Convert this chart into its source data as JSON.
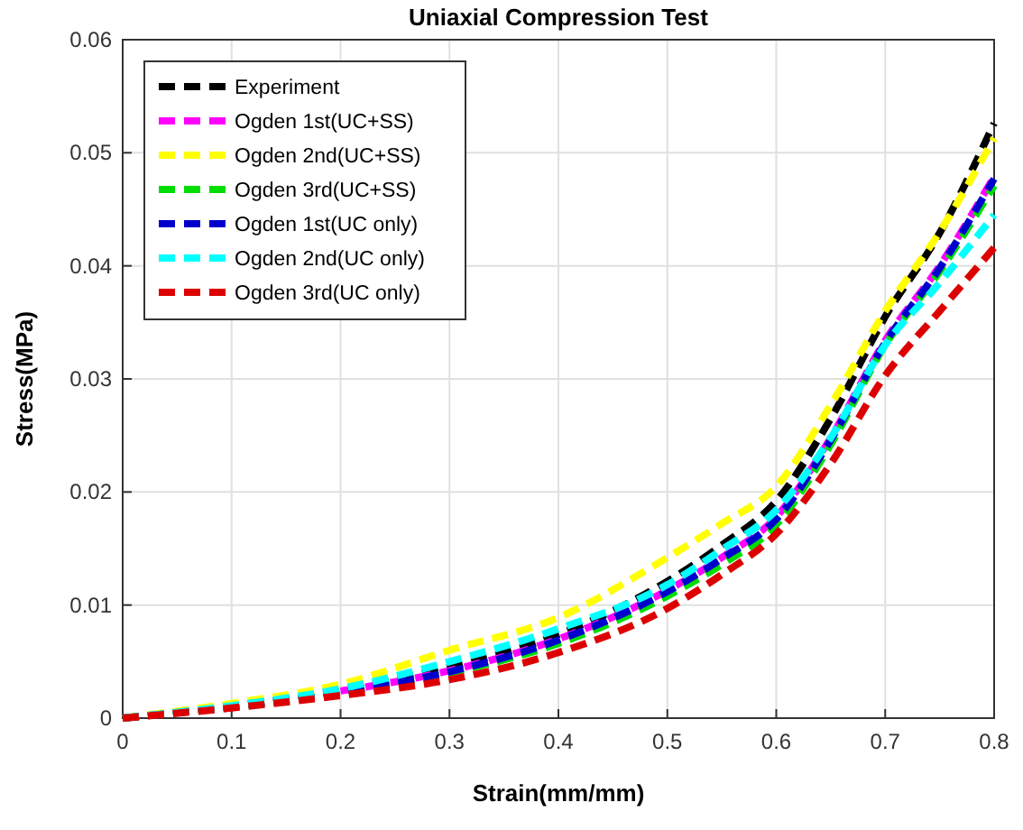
{
  "chart_data": {
    "type": "line",
    "title": "Uniaxial Compression Test",
    "xlabel": "Strain(mm/mm)",
    "ylabel": "Stress(MPa)",
    "x": [
      0,
      0.1,
      0.2,
      0.3,
      0.4,
      0.5,
      0.55,
      0.6,
      0.65,
      0.7,
      0.75,
      0.8
    ],
    "xlim": [
      0,
      0.8
    ],
    "xticks": [
      0,
      0.1,
      0.2,
      0.3,
      0.4,
      0.5,
      0.6,
      0.7,
      0.8
    ],
    "ylim": [
      0,
      0.06
    ],
    "yticks": [
      0,
      0.01,
      0.02,
      0.03,
      0.04,
      0.05,
      0.06
    ],
    "grid": true,
    "legend": "top left",
    "line_style": "dashed",
    "series": [
      {
        "name": "Experiment",
        "color": "#000000",
        "values": [
          0,
          0.0011,
          0.0025,
          0.0045,
          0.0074,
          0.0121,
          0.0153,
          0.0192,
          0.0265,
          0.0355,
          0.0429,
          0.0526
        ]
      },
      {
        "name": "Ogden 1st(UC+SS)",
        "color": "#ff00ff",
        "values": [
          null,
          null,
          0.0024,
          0.0042,
          0.007,
          0.0113,
          0.0142,
          0.0178,
          0.0248,
          0.0334,
          0.04,
          0.0479
        ]
      },
      {
        "name": "Ogden 2nd(UC+SS)",
        "color": "#ffff00",
        "values": [
          0,
          0.0013,
          0.003,
          0.006,
          0.0089,
          0.0142,
          0.0172,
          0.0205,
          0.0277,
          0.036,
          0.043,
          0.0513
        ]
      },
      {
        "name": "Ogden 3rd(UC+SS)",
        "color": "#00dd00",
        "values": [
          0,
          0.001,
          0.0023,
          0.004,
          0.0066,
          0.0108,
          0.0136,
          0.0171,
          0.0242,
          0.033,
          0.0395,
          0.0471
        ]
      },
      {
        "name": "Ogden 1st(UC only)",
        "color": "#0000cc",
        "values": [
          0,
          0.001,
          0.0023,
          0.0041,
          0.0069,
          0.0112,
          0.0141,
          0.0176,
          0.0246,
          0.0332,
          0.0398,
          0.0477
        ]
      },
      {
        "name": "Ogden 2nd(UC only)",
        "color": "#00ffff",
        "values": [
          0,
          0.0011,
          0.0026,
          0.005,
          0.0079,
          0.0118,
          0.0149,
          0.0184,
          0.0248,
          0.033,
          0.0385,
          0.0445
        ]
      },
      {
        "name": "Ogden 3rd(UC only)",
        "color": "#dd0000",
        "values": [
          0,
          0.0009,
          0.002,
          0.0034,
          0.0058,
          0.0097,
          0.0127,
          0.0163,
          0.0225,
          0.0303,
          0.036,
          0.0416
        ]
      }
    ]
  }
}
